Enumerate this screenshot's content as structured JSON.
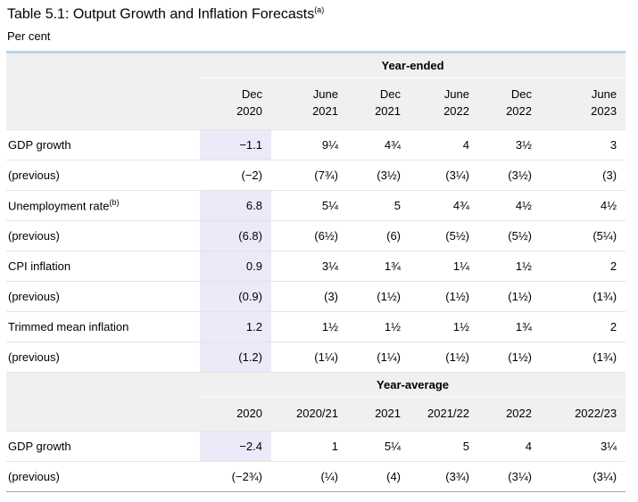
{
  "page": {
    "title": "Table 5.1: Output Growth and Inflation Forecasts",
    "title_sup": "(a)",
    "subtitle": "Per cent"
  },
  "colors": {
    "accent_line": "#b5d5ef",
    "header_bg": "#f0f0f0",
    "highlight": "#eaeaf9"
  },
  "table": {
    "sections": [
      {
        "span_header": "Year-ended",
        "columns": [
          [
            "Dec",
            "2020"
          ],
          [
            "June",
            "2021"
          ],
          [
            "Dec",
            "2021"
          ],
          [
            "June",
            "2022"
          ],
          [
            "Dec",
            "2022"
          ],
          [
            "June",
            "2023"
          ]
        ],
        "rows": [
          {
            "label": "GDP growth",
            "sup": "",
            "values": [
              "−1.1",
              "9¼",
              "4¾",
              "4",
              "3½",
              "3"
            ],
            "highlight_first": true
          },
          {
            "label": "(previous)",
            "sup": "",
            "values": [
              "(−2)",
              "(7¾)",
              "(3½)",
              "(3¼)",
              "(3½)",
              "(3)"
            ],
            "highlight_first": false
          },
          {
            "label": "Unemployment rate",
            "sup": "(b)",
            "values": [
              "6.8",
              "5¼",
              "5",
              "4¾",
              "4½",
              "4½"
            ],
            "highlight_first": true
          },
          {
            "label": "(previous)",
            "sup": "",
            "values": [
              "(6.8)",
              "(6½)",
              "(6)",
              "(5½)",
              "(5½)",
              "(5¼)"
            ],
            "highlight_first": true
          },
          {
            "label": "CPI inflation",
            "sup": "",
            "values": [
              "0.9",
              "3¼",
              "1¾",
              "1¼",
              "1½",
              "2"
            ],
            "highlight_first": true
          },
          {
            "label": "(previous)",
            "sup": "",
            "values": [
              "(0.9)",
              "(3)",
              "(1½)",
              "(1½)",
              "(1½)",
              "(1¾)"
            ],
            "highlight_first": true
          },
          {
            "label": "Trimmed mean inflation",
            "sup": "",
            "values": [
              "1.2",
              "1½",
              "1½",
              "1½",
              "1¾",
              "2"
            ],
            "highlight_first": true
          },
          {
            "label": "(previous)",
            "sup": "",
            "values": [
              "(1.2)",
              "(1¼)",
              "(1¼)",
              "(1½)",
              "(1½)",
              "(1¾)"
            ],
            "highlight_first": true
          }
        ]
      },
      {
        "span_header": "Year-average",
        "columns": [
          [
            "2020"
          ],
          [
            "2020/21"
          ],
          [
            "2021"
          ],
          [
            "2021/22"
          ],
          [
            "2022"
          ],
          [
            "2022/23"
          ]
        ],
        "rows": [
          {
            "label": "GDP growth",
            "sup": "",
            "values": [
              "−2.4",
              "1",
              "5¼",
              "5",
              "4",
              "3¼"
            ],
            "highlight_first": true
          },
          {
            "label": "(previous)",
            "sup": "",
            "values": [
              "(−2¾)",
              "(¼)",
              "(4)",
              "(3¾)",
              "(3¼)",
              "(3¼)"
            ],
            "highlight_first": false
          }
        ]
      }
    ]
  }
}
